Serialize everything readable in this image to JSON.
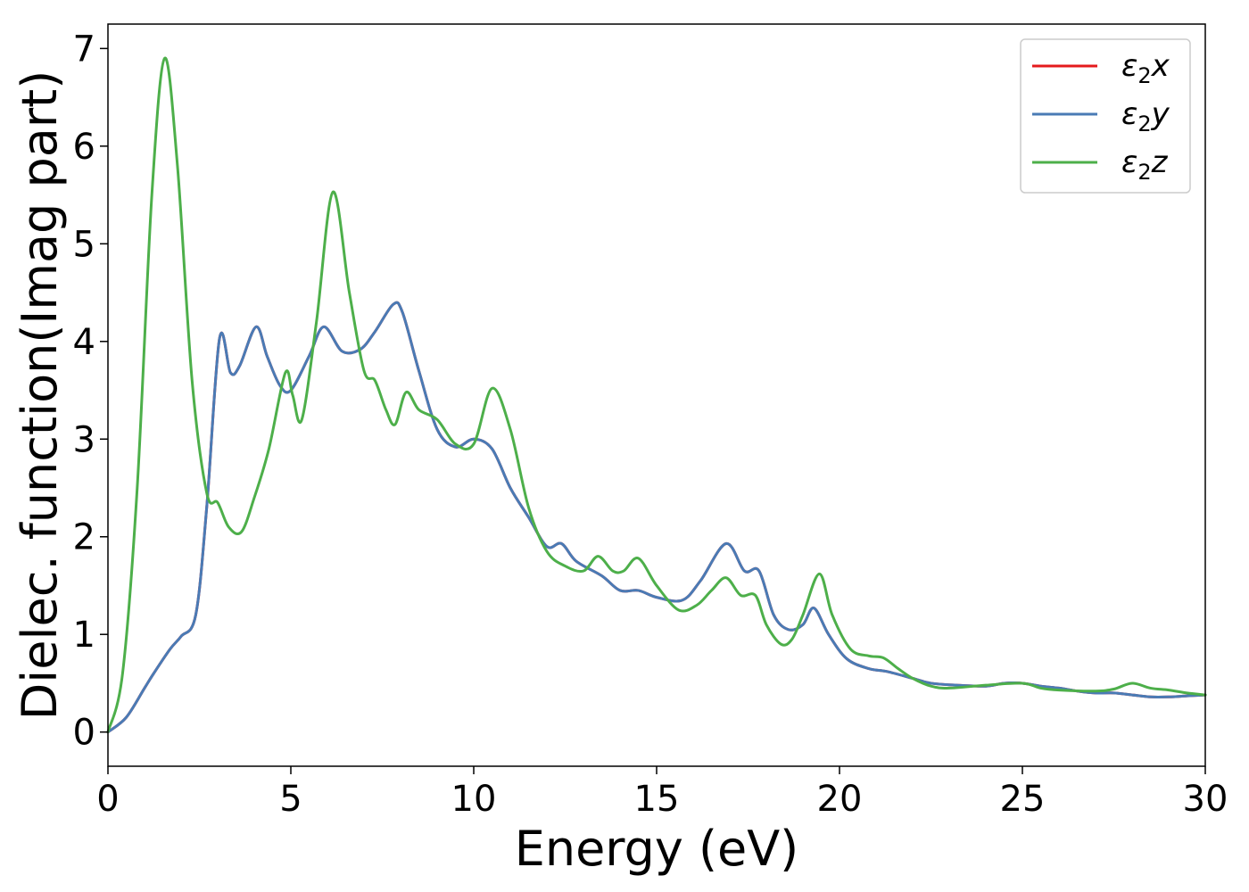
{
  "chart_data": {
    "type": "line",
    "title": "",
    "xlabel": "Energy (eV)",
    "ylabel": "Dielec. function(Imag part)",
    "xlim": [
      0,
      30
    ],
    "ylim": [
      -0.35,
      7.25
    ],
    "xticks": [
      0,
      5,
      10,
      15,
      20,
      25,
      30
    ],
    "xtick_labels": [
      "0",
      "5",
      "10",
      "15",
      "20",
      "25",
      "30"
    ],
    "yticks": [
      0,
      1,
      2,
      3,
      4,
      5,
      6,
      7
    ],
    "ytick_labels": [
      "0",
      "1",
      "2",
      "3",
      "4",
      "5",
      "6",
      "7"
    ],
    "grid": false,
    "legend_position": "top-right",
    "series": [
      {
        "name": "ε₂x",
        "legend_base": "ε",
        "legend_sub": "2",
        "legend_suffix": "x",
        "color": "#e41a1c",
        "x": [
          0,
          0.5,
          1.0,
          1.25,
          1.7,
          2.0,
          2.4,
          2.7,
          3.05,
          3.35,
          3.6,
          4.05,
          4.35,
          4.7,
          5.0,
          5.5,
          5.9,
          6.4,
          6.9,
          7.3,
          7.8,
          8.05,
          8.5,
          9.0,
          9.5,
          10.0,
          10.5,
          11.0,
          11.5,
          12.0,
          12.4,
          12.8,
          13.5,
          14.0,
          14.5,
          15.0,
          15.7,
          16.2,
          16.9,
          17.4,
          17.8,
          18.2,
          18.6,
          19.0,
          19.3,
          19.7,
          20.2,
          20.8,
          21.3,
          22.0,
          22.5,
          23.2,
          24.0,
          24.5,
          25.0,
          25.5,
          26.0,
          26.5,
          27.0,
          27.5,
          28.0,
          28.5,
          29.0,
          29.5,
          30.0
        ],
        "values": [
          0,
          0.15,
          0.45,
          0.6,
          0.85,
          0.98,
          1.2,
          2.3,
          4.03,
          3.68,
          3.75,
          4.15,
          3.85,
          3.55,
          3.5,
          3.85,
          4.15,
          3.9,
          3.92,
          4.1,
          4.38,
          4.3,
          3.7,
          3.1,
          2.92,
          3.0,
          2.9,
          2.5,
          2.2,
          1.9,
          1.93,
          1.75,
          1.6,
          1.45,
          1.45,
          1.38,
          1.35,
          1.55,
          1.93,
          1.65,
          1.65,
          1.2,
          1.05,
          1.1,
          1.27,
          1.0,
          0.75,
          0.65,
          0.62,
          0.55,
          0.5,
          0.48,
          0.47,
          0.5,
          0.5,
          0.47,
          0.45,
          0.42,
          0.4,
          0.4,
          0.38,
          0.36,
          0.36,
          0.37,
          0.38
        ]
      },
      {
        "name": "ε₂y",
        "legend_base": "ε",
        "legend_sub": "2",
        "legend_suffix": "y",
        "color": "#4a7bb5",
        "x": [
          0,
          0.5,
          1.0,
          1.25,
          1.7,
          2.0,
          2.4,
          2.7,
          3.05,
          3.35,
          3.6,
          4.05,
          4.35,
          4.7,
          5.0,
          5.5,
          5.9,
          6.4,
          6.9,
          7.3,
          7.8,
          8.05,
          8.5,
          9.0,
          9.5,
          10.0,
          10.5,
          11.0,
          11.5,
          12.0,
          12.4,
          12.8,
          13.5,
          14.0,
          14.5,
          15.0,
          15.7,
          16.2,
          16.9,
          17.4,
          17.8,
          18.2,
          18.6,
          19.0,
          19.3,
          19.7,
          20.2,
          20.8,
          21.3,
          22.0,
          22.5,
          23.2,
          24.0,
          24.5,
          25.0,
          25.5,
          26.0,
          26.5,
          27.0,
          27.5,
          28.0,
          28.5,
          29.0,
          29.5,
          30.0
        ],
        "values": [
          0,
          0.15,
          0.45,
          0.6,
          0.85,
          0.98,
          1.2,
          2.3,
          4.03,
          3.68,
          3.75,
          4.15,
          3.85,
          3.55,
          3.5,
          3.85,
          4.15,
          3.9,
          3.92,
          4.1,
          4.38,
          4.3,
          3.7,
          3.1,
          2.92,
          3.0,
          2.9,
          2.5,
          2.2,
          1.9,
          1.93,
          1.75,
          1.6,
          1.45,
          1.45,
          1.38,
          1.35,
          1.55,
          1.93,
          1.65,
          1.65,
          1.2,
          1.05,
          1.1,
          1.27,
          1.0,
          0.75,
          0.65,
          0.62,
          0.55,
          0.5,
          0.48,
          0.47,
          0.5,
          0.5,
          0.47,
          0.45,
          0.42,
          0.4,
          0.4,
          0.38,
          0.36,
          0.36,
          0.37,
          0.38
        ]
      },
      {
        "name": "ε₂z",
        "legend_base": "ε",
        "legend_sub": "2",
        "legend_suffix": "z",
        "color": "#4daf4a",
        "x": [
          0,
          0.4,
          0.8,
          1.2,
          1.55,
          1.9,
          2.3,
          2.7,
          3.0,
          3.3,
          3.65,
          4.0,
          4.4,
          4.85,
          5.05,
          5.3,
          5.7,
          6.15,
          6.6,
          7.0,
          7.3,
          7.6,
          7.85,
          8.15,
          8.5,
          9.0,
          9.5,
          10.0,
          10.5,
          11.0,
          11.5,
          12.0,
          12.5,
          13.0,
          13.4,
          13.8,
          14.1,
          14.5,
          15.0,
          15.6,
          16.1,
          16.5,
          16.9,
          17.3,
          17.7,
          18.0,
          18.4,
          18.7,
          19.0,
          19.45,
          19.8,
          20.3,
          20.8,
          21.2,
          21.6,
          22.0,
          22.5,
          23.0,
          24.0,
          25.0,
          25.5,
          26.0,
          27.0,
          27.5,
          28.0,
          28.5,
          29.0,
          29.5,
          30.0
        ],
        "values": [
          0,
          0.6,
          2.5,
          5.5,
          6.9,
          5.8,
          3.6,
          2.45,
          2.35,
          2.1,
          2.05,
          2.4,
          2.9,
          3.68,
          3.45,
          3.2,
          4.2,
          5.53,
          4.5,
          3.7,
          3.6,
          3.3,
          3.15,
          3.48,
          3.3,
          3.2,
          2.95,
          2.95,
          3.52,
          3.1,
          2.3,
          1.85,
          1.7,
          1.65,
          1.8,
          1.65,
          1.65,
          1.78,
          1.5,
          1.25,
          1.3,
          1.45,
          1.58,
          1.4,
          1.4,
          1.1,
          0.9,
          0.95,
          1.2,
          1.62,
          1.2,
          0.85,
          0.78,
          0.76,
          0.65,
          0.55,
          0.47,
          0.45,
          0.48,
          0.5,
          0.45,
          0.43,
          0.42,
          0.44,
          0.5,
          0.45,
          0.43,
          0.4,
          0.38
        ]
      }
    ]
  }
}
